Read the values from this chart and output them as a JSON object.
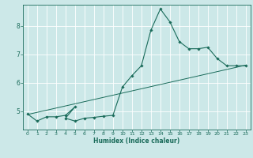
{
  "title": "",
  "xlabel": "Humidex (Indice chaleur)",
  "bg_color": "#cce8e8",
  "line_color": "#1a6b5a",
  "xlim": [
    -0.5,
    23.5
  ],
  "ylim": [
    4.35,
    8.75
  ],
  "x_ticks": [
    0,
    1,
    2,
    3,
    4,
    5,
    6,
    7,
    8,
    9,
    10,
    11,
    12,
    13,
    14,
    15,
    16,
    17,
    18,
    19,
    20,
    21,
    22,
    23
  ],
  "y_ticks": [
    5,
    6,
    7,
    8
  ],
  "zigzag_x": [
    0,
    1,
    2,
    3,
    4,
    5,
    4,
    5,
    6,
    7,
    8,
    9,
    10,
    11,
    12,
    13,
    14,
    15,
    16,
    17,
    18,
    19,
    20,
    21,
    22,
    23
  ],
  "zigzag_y": [
    4.9,
    4.65,
    4.8,
    4.8,
    4.85,
    5.15,
    4.75,
    4.65,
    4.75,
    4.78,
    4.82,
    4.85,
    5.85,
    6.25,
    6.6,
    7.85,
    8.6,
    8.15,
    7.45,
    7.2,
    7.2,
    7.25,
    6.85,
    6.6,
    6.6,
    6.6
  ],
  "trend_x": [
    0,
    23
  ],
  "trend_y": [
    4.88,
    6.62
  ]
}
